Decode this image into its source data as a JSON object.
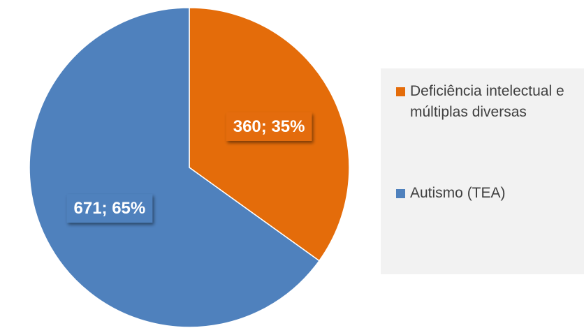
{
  "chart_data": {
    "type": "pie",
    "start_angle_deg": 0,
    "direction": "clockwise",
    "slices": [
      {
        "name": "Deficiência intelectual e múltiplas diversas",
        "value": 360,
        "percent": 35,
        "label": "360; 35%",
        "color": "#e46c0a"
      },
      {
        "name": "Autismo (TEA)",
        "value": 671,
        "percent": 65,
        "label": "671; 65%",
        "color": "#4f81bd"
      }
    ],
    "legend_position": "right",
    "title": "",
    "label_box_color": "#e46c0a",
    "label_box_color_2": "#4f81bd",
    "legend_background": "#f2f2f2",
    "background": "#ffffff"
  }
}
